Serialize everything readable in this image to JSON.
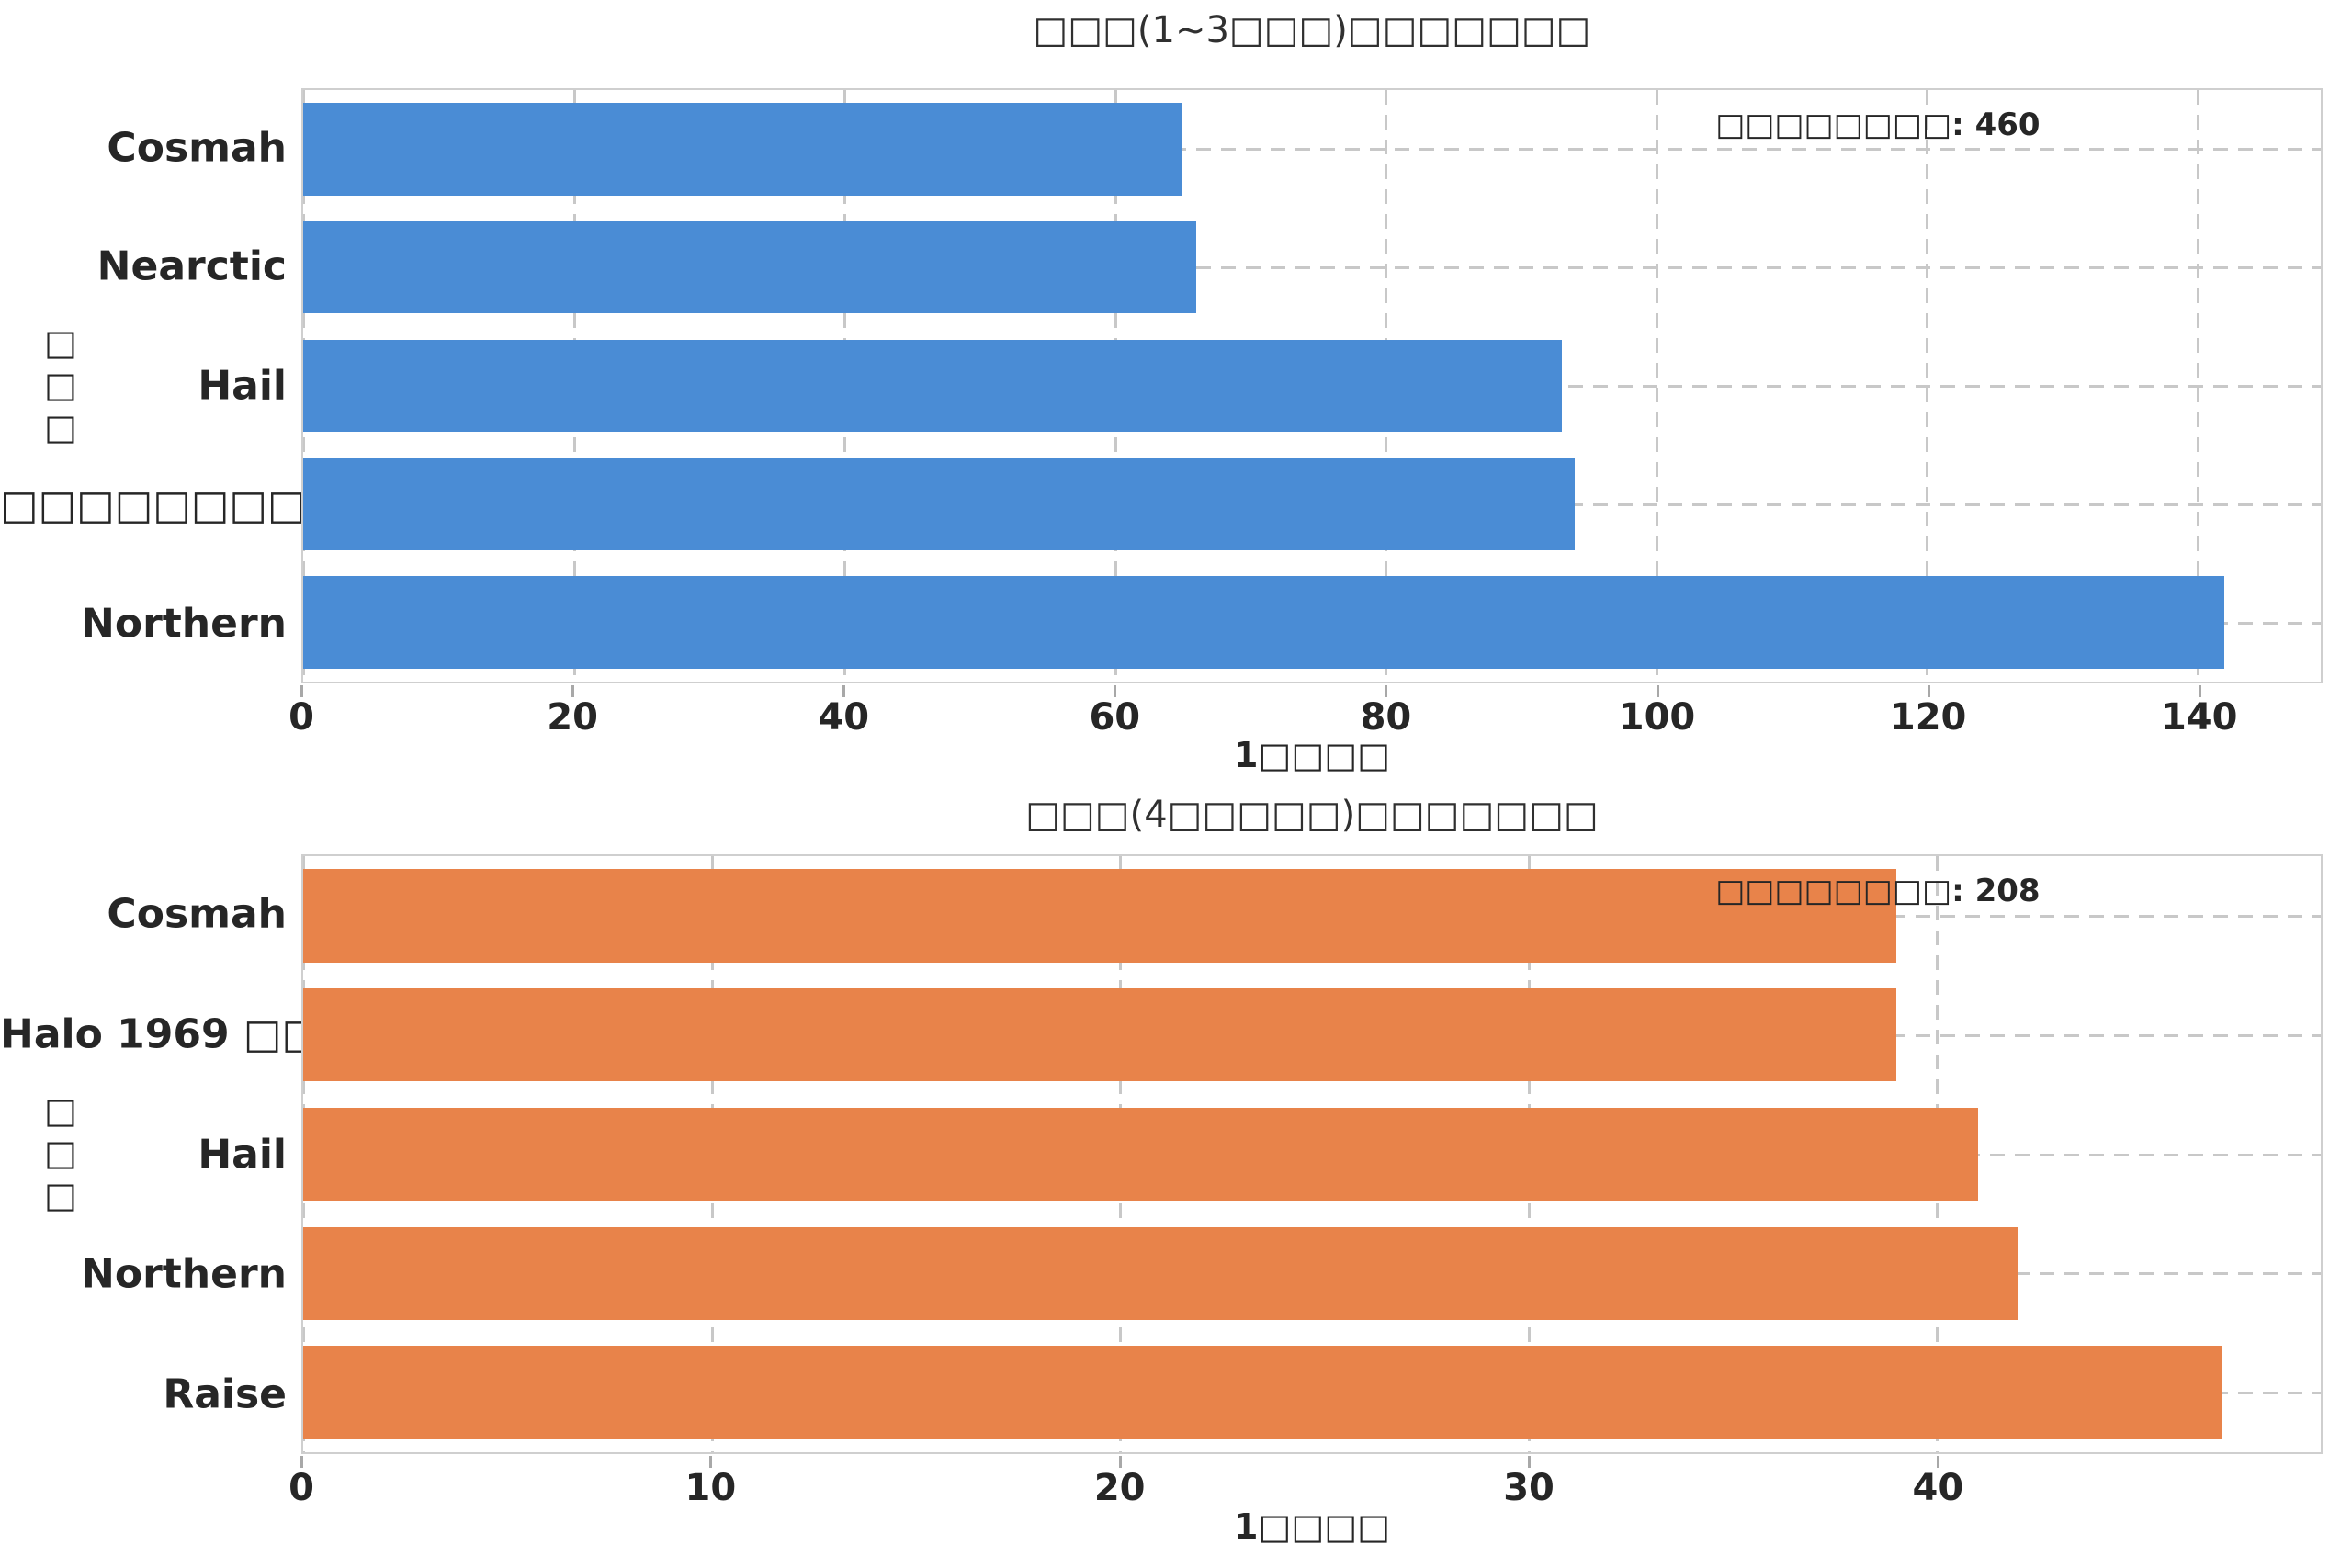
{
  "figure": {
    "background": "#ffffff",
    "text_color": "#262626",
    "grid_color": "#c8c8c8",
    "spine_color": "#cfcfcf"
  },
  "chart_data": [
    {
      "type": "bar",
      "orientation": "horizontal",
      "title": "□□□(1~3□□□)□□□□□□□",
      "categories": [
        "Cosmah",
        "Nearctic",
        "Hail",
        "□□□□□□□□□",
        "Northern"
      ],
      "values": [
        65,
        66,
        93,
        94,
        142
      ],
      "annotation": "□□□□□□□□: 460",
      "annotation_total": 460,
      "xlabel": "1□□□□",
      "ylabel": "□□□",
      "xticks": [
        0,
        20,
        40,
        60,
        80,
        100,
        120,
        140
      ],
      "xlim": [
        0,
        149.1
      ],
      "bar_color": "#4a8cd5",
      "bar_height_fraction": 0.78,
      "grid": "dashed, both axes",
      "legend": "none"
    },
    {
      "type": "bar",
      "orientation": "horizontal",
      "title": "□□□(4□□□□□)□□□□□□□",
      "categories": [
        "Cosmah",
        "Halo 1969 □□□",
        "Hail",
        "Northern",
        "Raise"
      ],
      "values": [
        39,
        39,
        41,
        42,
        47
      ],
      "annotation": "□□□□□□□□: 208",
      "annotation_total": 208,
      "xlabel": "1□□□□",
      "ylabel": "□□□",
      "xticks": [
        0,
        10,
        20,
        30,
        40
      ],
      "xlim": [
        0,
        49.4
      ],
      "bar_color": "#e8834a",
      "bar_height_fraction": 0.78,
      "grid": "dashed, both axes",
      "legend": "none"
    }
  ]
}
